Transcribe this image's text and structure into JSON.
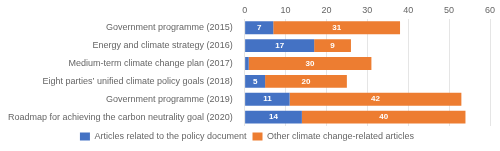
{
  "chart_data": {
    "type": "bar",
    "orientation": "horizontal",
    "stacked": true,
    "categories": [
      "Government programme (2015)",
      "Energy and climate strategy (2016)",
      "Medium-term climate change plan (2017)",
      "Eight parties’ unified climate policy goals (2018)",
      "Government programme (2019)",
      "Roadmap for achieving the carbon neutrality goal (2020)"
    ],
    "series": [
      {
        "name": "Articles related to the policy document",
        "color": "#4472C4",
        "values": [
          7,
          17,
          1,
          5,
          11,
          14
        ],
        "value_labels": [
          "7",
          "17",
          null,
          "5",
          "11",
          "14"
        ]
      },
      {
        "name": "Other climate change-related articles",
        "color": "#ED7D31",
        "values": [
          31,
          9,
          30,
          20,
          42,
          40
        ]
      }
    ],
    "xlim": [
      0,
      60
    ],
    "xticks": [
      0,
      10,
      20,
      30,
      40,
      50,
      60
    ],
    "grid": true,
    "legend": "bottom",
    "data_labels": true
  }
}
